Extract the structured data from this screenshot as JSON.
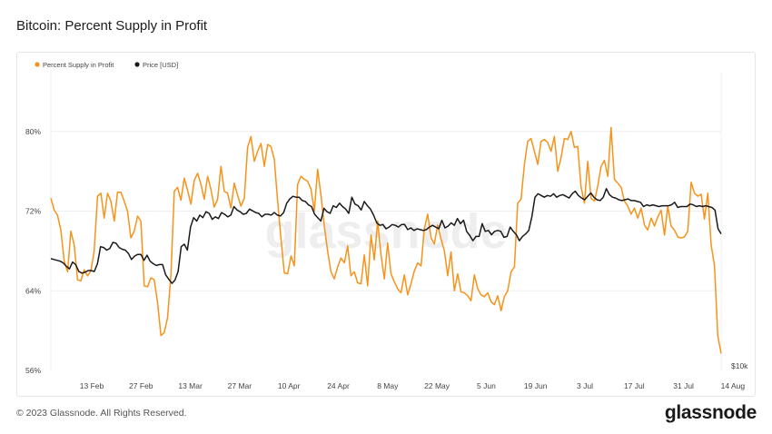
{
  "header": {
    "title": "Bitcoin: Percent Supply in Profit"
  },
  "footer": {
    "copyright": "© 2023 Glassnode. All Rights Reserved.",
    "logo": "glassnode"
  },
  "watermark": "glassnode",
  "colors": {
    "profit": "#f7931a",
    "price": "#1a1a1a",
    "grid": "#efefef",
    "axis_text": "#444444"
  },
  "chart_data": {
    "type": "line",
    "title": "Bitcoin: Percent Supply in Profit",
    "legend_placement": "top-left",
    "grid": true,
    "x_ticks": [
      "13 Feb",
      "27 Feb",
      "13 Mar",
      "27 Mar",
      "10 Apr",
      "24 Apr",
      "8 May",
      "22 May",
      "5 Jun",
      "19 Jun",
      "3 Jul",
      "17 Jul",
      "31 Jul",
      "14 Aug"
    ],
    "y_left": {
      "unit": "%",
      "ticks": [
        "56%",
        "64%",
        "72%",
        "80%"
      ],
      "range": [
        56,
        86
      ]
    },
    "y_right": {
      "ticks": [
        "$10k"
      ],
      "range_usd": [
        10000,
        45000
      ]
    },
    "series": [
      {
        "name": "Percent Supply in Profit",
        "axis": "left",
        "values": [
          73.3,
          72.1,
          71.6,
          70.1,
          67.0,
          65.9,
          70.0,
          68.6,
          65.1,
          65.0,
          66.1,
          65.5,
          66.0,
          68.0,
          73.5,
          73.8,
          71.3,
          73.8,
          73.0,
          71.0,
          73.9,
          73.9,
          73.0,
          72.0,
          69.3,
          70.0,
          71.5,
          71.0,
          64.5,
          64.4,
          65.3,
          65.1,
          62.8,
          59.5,
          59.8,
          61.3,
          65.6,
          74.0,
          74.4,
          73.1,
          75.3,
          74.1,
          72.7,
          75.1,
          75.8,
          74.7,
          73.2,
          75.5,
          74.2,
          72.4,
          73.2,
          76.5,
          74.0,
          73.8,
          72.3,
          74.8,
          73.6,
          72.5,
          73.3,
          78.4,
          79.5,
          77.0,
          78.0,
          78.8,
          76.5,
          78.7,
          78.5,
          77.2,
          73.0,
          69.3,
          65.8,
          65.7,
          67.5,
          66.5,
          74.7,
          75.5,
          75.2,
          75.0,
          74.2,
          72.0,
          76.2,
          73.6,
          70.5,
          68.0,
          65.9,
          65.2,
          66.4,
          67.3,
          66.8,
          68.5,
          65.5,
          65.9,
          64.8,
          64.7,
          67.6,
          64.5,
          69.6,
          67.1,
          71.0,
          67.6,
          65.2,
          68.8,
          65.7,
          64.9,
          64.2,
          63.8,
          65.6,
          63.6,
          64.7,
          66.0,
          66.8,
          66.5,
          70.2,
          71.7,
          69.3,
          68.7,
          70.6,
          69.2,
          68.0,
          65.5,
          67.9,
          64.0,
          65.7,
          63.9,
          63.8,
          63.5,
          63.0,
          65.6,
          64.2,
          63.6,
          63.4,
          63.8,
          62.9,
          62.6,
          63.5,
          62.0,
          63.4,
          64.0,
          65.9,
          66.4,
          72.8,
          73.2,
          76.7,
          79.0,
          79.3,
          78.0,
          76.7,
          79.0,
          79.2,
          78.9,
          78.0,
          79.5,
          76.0,
          77.4,
          79.3,
          79.2,
          80.0,
          78.4,
          78.5,
          74.4,
          72.8,
          77.0,
          73.3,
          73.0,
          74.5,
          76.5,
          77.1,
          75.5,
          80.4,
          75.2,
          74.8,
          74.4,
          73.0,
          72.5,
          71.7,
          72.3,
          71.3,
          72.3,
          70.6,
          70.1,
          71.3,
          70.5,
          71.4,
          72.1,
          69.6,
          72.5,
          70.5,
          70.1,
          69.4,
          69.3,
          69.4,
          70.0,
          74.9,
          73.8,
          73.5,
          73.7,
          71.2,
          73.8,
          68.6,
          66.5,
          59.5,
          57.7
        ]
      },
      {
        "name": "Price [USD]",
        "axis": "right",
        "values": [
          23100,
          23000,
          22900,
          22800,
          22600,
          22200,
          21900,
          22700,
          22400,
          21600,
          21400,
          21500,
          21700,
          21700,
          21600,
          22500,
          24500,
          24400,
          24100,
          24300,
          25000,
          24900,
          24400,
          24200,
          24100,
          23700,
          23000,
          23400,
          23600,
          23600,
          22900,
          23500,
          22800,
          22500,
          22300,
          22400,
          22400,
          21200,
          20700,
          20200,
          20600,
          21600,
          24500,
          24800,
          24100,
          26800,
          27900,
          27500,
          28200,
          27900,
          28600,
          28400,
          27700,
          28000,
          27800,
          28500,
          28300,
          28000,
          28200,
          29200,
          28800,
          28600,
          28300,
          28400,
          28900,
          28700,
          28500,
          28400,
          28000,
          28300,
          28300,
          28200,
          28500,
          28200,
          28100,
          28500,
          29600,
          30100,
          30400,
          30300,
          30300,
          29900,
          29800,
          29400,
          29200,
          28300,
          27900,
          27500,
          29000,
          28600,
          28400,
          29300,
          29100,
          29600,
          29200,
          28900,
          28400,
          30300,
          29500,
          29300,
          28800,
          29800,
          29300,
          28900,
          28200,
          27300,
          27000,
          27100,
          26600,
          26800,
          27100,
          27000,
          26800,
          27100,
          27100,
          26500,
          26700,
          26400,
          26600,
          26500,
          26400,
          26500,
          26800,
          27000,
          26800,
          26600,
          27600,
          26700,
          26900,
          27300,
          27000,
          27800,
          27200,
          27600,
          26300,
          25800,
          25200,
          25700,
          25700,
          27200,
          26300,
          26400,
          25900,
          26300,
          26400,
          26300,
          25600,
          25700,
          26800,
          26300,
          25900,
          25200,
          25700,
          26000,
          26400,
          28000,
          30300,
          30700,
          30500,
          30300,
          30500,
          30400,
          30700,
          30300,
          30500,
          30600,
          30400,
          30200,
          30700,
          31000,
          30500,
          30200,
          30000,
          30400,
          30800,
          30300,
          30000,
          29900,
          30300,
          31300,
          30600,
          30300,
          30200,
          30000,
          29900,
          30000,
          30100,
          29900,
          29900,
          29800,
          29700,
          29200,
          29400,
          29300,
          29400,
          29300,
          29200,
          29300,
          29300,
          29300,
          29400,
          29700,
          29100,
          29200,
          29200,
          29200,
          29500,
          29400,
          29200,
          29300,
          29200,
          29300,
          29200,
          29100,
          28800,
          26600,
          26000
        ]
      }
    ]
  }
}
